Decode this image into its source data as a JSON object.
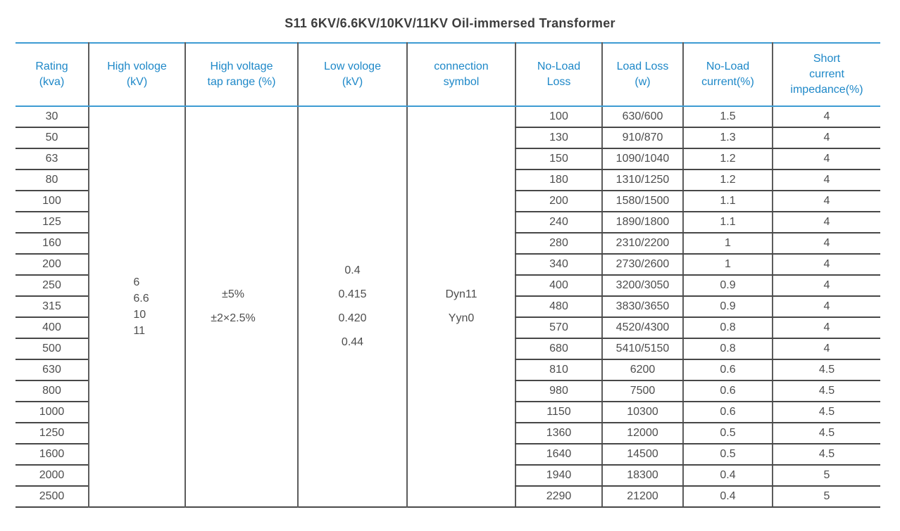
{
  "title": "S11 6KV/6.6KV/10KV/11KV Oil-immersed Transformer",
  "colors": {
    "accent_blue_text": "#1e88c8",
    "blue_rule": "#3d9bd3",
    "gray_rule": "#5c5c5c",
    "row_rule": "#474747",
    "body_text": "#4d4d4d",
    "title_text": "#3d3d3d"
  },
  "table": {
    "headers": [
      {
        "id": "rating",
        "label": "Rating\n(kva)"
      },
      {
        "id": "high-voltage",
        "label": "High vologe\n(kV)"
      },
      {
        "id": "tap-range",
        "label": "High voltage\ntap range (%)"
      },
      {
        "id": "low-voltage",
        "label": "Low vologe\n(kV)"
      },
      {
        "id": "connection-symbol",
        "label": "connection\nsymbol"
      },
      {
        "id": "no-load-loss",
        "label": "No-Load\nLoss"
      },
      {
        "id": "load-loss",
        "label": "Load Loss\n(w)"
      },
      {
        "id": "no-load-current",
        "label": "No-Load\ncurrent(%)"
      },
      {
        "id": "impedance",
        "label": "Short\ncurrent\nimpedance(%)"
      }
    ],
    "merged": {
      "high_voltage_kv": [
        "6",
        "6.6",
        "10",
        "11"
      ],
      "tap_range_percent": [
        "±5%",
        "±2×2.5%"
      ],
      "low_voltage_kv": [
        "0.4",
        "0.415",
        "0.420",
        "0.44"
      ],
      "connection_symbol": [
        "Dyn11",
        "Yyn0"
      ]
    },
    "rows": [
      {
        "rating": "30",
        "no_load_loss": "100",
        "load_loss": "630/600",
        "no_load_current": "1.5",
        "impedance": "4"
      },
      {
        "rating": "50",
        "no_load_loss": "130",
        "load_loss": "910/870",
        "no_load_current": "1.3",
        "impedance": "4"
      },
      {
        "rating": "63",
        "no_load_loss": "150",
        "load_loss": "1090/1040",
        "no_load_current": "1.2",
        "impedance": "4"
      },
      {
        "rating": "80",
        "no_load_loss": "180",
        "load_loss": "1310/1250",
        "no_load_current": "1.2",
        "impedance": "4"
      },
      {
        "rating": "100",
        "no_load_loss": "200",
        "load_loss": "1580/1500",
        "no_load_current": "1.1",
        "impedance": "4"
      },
      {
        "rating": "125",
        "no_load_loss": "240",
        "load_loss": "1890/1800",
        "no_load_current": "1.1",
        "impedance": "4"
      },
      {
        "rating": "160",
        "no_load_loss": "280",
        "load_loss": "2310/2200",
        "no_load_current": "1",
        "impedance": "4"
      },
      {
        "rating": "200",
        "no_load_loss": "340",
        "load_loss": "2730/2600",
        "no_load_current": "1",
        "impedance": "4"
      },
      {
        "rating": "250",
        "no_load_loss": "400",
        "load_loss": "3200/3050",
        "no_load_current": "0.9",
        "impedance": "4"
      },
      {
        "rating": "315",
        "no_load_loss": "480",
        "load_loss": "3830/3650",
        "no_load_current": "0.9",
        "impedance": "4"
      },
      {
        "rating": "400",
        "no_load_loss": "570",
        "load_loss": "4520/4300",
        "no_load_current": "0.8",
        "impedance": "4"
      },
      {
        "rating": "500",
        "no_load_loss": "680",
        "load_loss": "5410/5150",
        "no_load_current": "0.8",
        "impedance": "4"
      },
      {
        "rating": "630",
        "no_load_loss": "810",
        "load_loss": "6200",
        "no_load_current": "0.6",
        "impedance": "4.5"
      },
      {
        "rating": "800",
        "no_load_loss": "980",
        "load_loss": "7500",
        "no_load_current": "0.6",
        "impedance": "4.5"
      },
      {
        "rating": "1000",
        "no_load_loss": "1150",
        "load_loss": "10300",
        "no_load_current": "0.6",
        "impedance": "4.5"
      },
      {
        "rating": "1250",
        "no_load_loss": "1360",
        "load_loss": "12000",
        "no_load_current": "0.5",
        "impedance": "4.5"
      },
      {
        "rating": "1600",
        "no_load_loss": "1640",
        "load_loss": "14500",
        "no_load_current": "0.5",
        "impedance": "4.5"
      },
      {
        "rating": "2000",
        "no_load_loss": "1940",
        "load_loss": "18300",
        "no_load_current": "0.4",
        "impedance": "5"
      },
      {
        "rating": "2500",
        "no_load_loss": "2290",
        "load_loss": "21200",
        "no_load_current": "0.4",
        "impedance": "5"
      }
    ]
  }
}
